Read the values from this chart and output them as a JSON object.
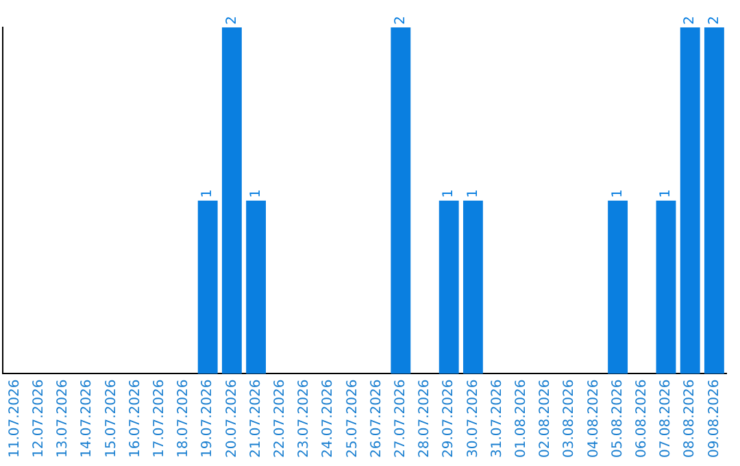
{
  "chart_data": {
    "type": "bar",
    "categories": [
      "11.07.2026",
      "12.07.2026",
      "13.07.2026",
      "14.07.2026",
      "15.07.2026",
      "16.07.2026",
      "17.07.2026",
      "18.07.2026",
      "19.07.2026",
      "20.07.2026",
      "21.07.2026",
      "22.07.2026",
      "23.07.2026",
      "24.07.2026",
      "25.07.2026",
      "26.07.2026",
      "27.07.2026",
      "28.07.2026",
      "29.07.2026",
      "30.07.2026",
      "31.07.2026",
      "01.08.2026",
      "02.08.2026",
      "03.08.2026",
      "04.08.2026",
      "05.08.2026",
      "06.08.2026",
      "07.08.2026",
      "08.08.2026",
      "09.08.2026"
    ],
    "values": [
      0,
      0,
      0,
      0,
      0,
      0,
      0,
      0,
      1,
      2,
      1,
      0,
      0,
      0,
      0,
      0,
      2,
      0,
      1,
      1,
      0,
      0,
      0,
      0,
      0,
      1,
      0,
      1,
      2,
      2
    ],
    "value_labels": [
      null,
      null,
      null,
      null,
      null,
      null,
      null,
      null,
      "1",
      "2",
      "1",
      null,
      null,
      null,
      null,
      null,
      "2",
      null,
      "1",
      "1",
      null,
      null,
      null,
      null,
      null,
      "1",
      null,
      "1",
      "2",
      "2"
    ],
    "color": "#0a7fe0",
    "ylim": [
      0,
      2
    ],
    "tick_labels": "x",
    "grid": false,
    "legend": false
  }
}
